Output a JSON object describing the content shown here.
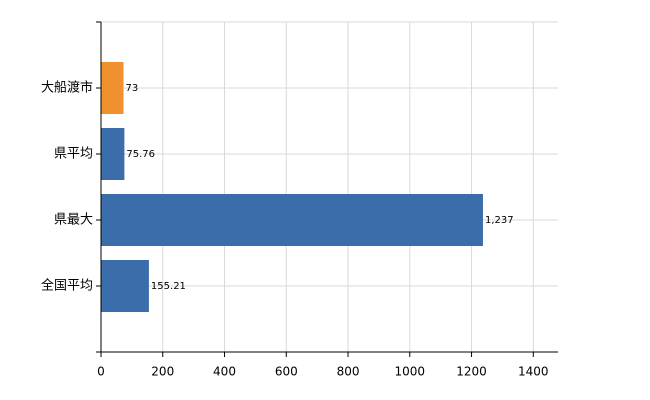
{
  "chart_data": {
    "type": "hbar",
    "categories": [
      "大船渡市",
      "県平均",
      "県最大",
      "全国平均"
    ],
    "values": [
      73,
      75.76,
      1237,
      155.21
    ],
    "value_labels": [
      "73",
      "75.76",
      "1,237",
      "155.21"
    ],
    "colors": [
      "#f0912f",
      "#3b6daa",
      "#3b6daa",
      "#3b6daa"
    ],
    "xlim": [
      0,
      1480
    ],
    "xticks": [
      0,
      200,
      400,
      600,
      800,
      1000,
      1200,
      1400
    ],
    "grid": true
  }
}
